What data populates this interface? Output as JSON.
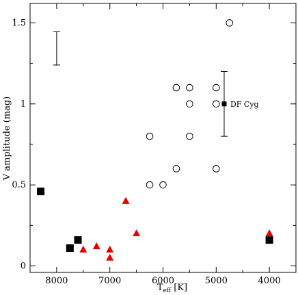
{
  "chart_data": {
    "type": "scatter",
    "xlabel": "T",
    "xlabel_sub": "eff",
    "xlabel_unit": "[K]",
    "ylabel": "V amplitude (mag)",
    "xlim": [
      8500,
      3500
    ],
    "ylim": [
      -0.04,
      1.62
    ],
    "x_reversed": true,
    "x_ticks": [
      8000,
      7000,
      6000,
      5000,
      4000
    ],
    "x_tick_labels": [
      "8000",
      "7000",
      "6000",
      "5000",
      "4000"
    ],
    "y_ticks": [
      0,
      0.5,
      1,
      1.5
    ],
    "y_tick_labels": [
      "0",
      "0.5",
      "1",
      "1.5"
    ],
    "grid": false,
    "legend": "none",
    "series": [
      {
        "marker": "open-circle",
        "color": "#000000",
        "points": [
          {
            "x": 4750,
            "y": 1.5
          },
          {
            "x": 5750,
            "y": 1.1
          },
          {
            "x": 5500,
            "y": 1.1
          },
          {
            "x": 5000,
            "y": 1.1
          },
          {
            "x": 5500,
            "y": 1.0
          },
          {
            "x": 5000,
            "y": 1.0
          },
          {
            "x": 6250,
            "y": 0.8
          },
          {
            "x": 5500,
            "y": 0.8
          },
          {
            "x": 5750,
            "y": 0.6
          },
          {
            "x": 5000,
            "y": 0.6
          },
          {
            "x": 6250,
            "y": 0.5
          },
          {
            "x": 6000,
            "y": 0.5
          }
        ]
      },
      {
        "marker": "filled-square",
        "color": "#000000",
        "points": [
          {
            "x": 8300,
            "y": 0.46
          },
          {
            "x": 7600,
            "y": 0.16
          },
          {
            "x": 7750,
            "y": 0.11
          },
          {
            "x": 4000,
            "y": 0.16
          }
        ]
      },
      {
        "marker": "filled-triangle",
        "color": "#e60000",
        "points": [
          {
            "x": 6700,
            "y": 0.4
          },
          {
            "x": 6500,
            "y": 0.2
          },
          {
            "x": 7250,
            "y": 0.12
          },
          {
            "x": 7500,
            "y": 0.1
          },
          {
            "x": 7000,
            "y": 0.1
          },
          {
            "x": 7000,
            "y": 0.05
          },
          {
            "x": 4000,
            "y": 0.2
          }
        ]
      }
    ],
    "highlight": {
      "label": "DF Cyg",
      "marker": "small-filled-square",
      "x": 4850,
      "y": 1.0,
      "error": [
        0.8,
        1.2
      ]
    },
    "error_bar_reference": {
      "x": 8000,
      "y_low": 1.24,
      "y_high": 1.445
    }
  }
}
